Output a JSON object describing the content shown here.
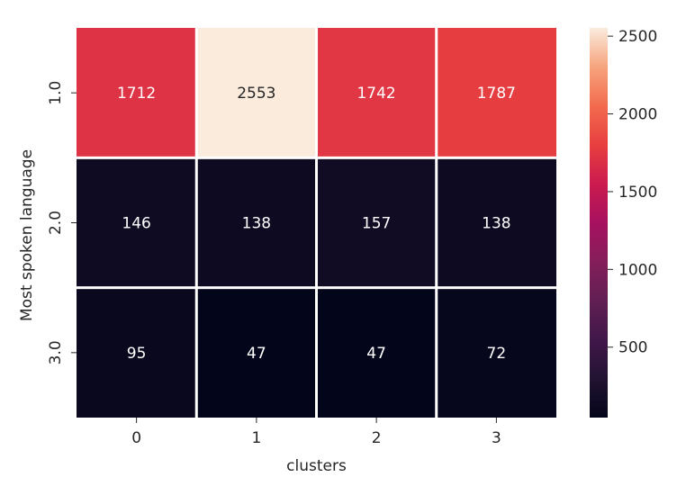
{
  "chart_data": {
    "type": "heatmap",
    "title": "",
    "xlabel": "clusters",
    "ylabel": "Most spoken language",
    "x_categories": [
      "0",
      "1",
      "2",
      "3"
    ],
    "y_categories": [
      "1.0",
      "2.0",
      "3.0"
    ],
    "values": [
      [
        1712,
        2553,
        1742,
        1787
      ],
      [
        146,
        138,
        157,
        138
      ],
      [
        95,
        47,
        47,
        72
      ]
    ],
    "colorbar": {
      "range": [
        47,
        2553
      ],
      "ticks": [
        500,
        1000,
        1500,
        2000,
        2500
      ],
      "tick_labels": [
        "500",
        "1000",
        "1500",
        "2000",
        "2500"
      ],
      "colormap": "rocket"
    },
    "annot_colors": {
      "dark_text": "#262626",
      "light_text": "#ffffff"
    },
    "grid": false
  }
}
